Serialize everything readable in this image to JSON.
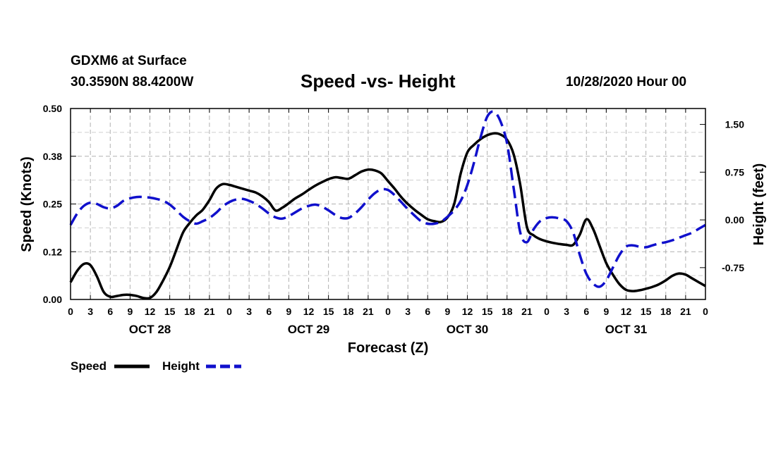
{
  "header": {
    "station": "GDXM6 at Surface",
    "coords": "30.3590N 88.4200W",
    "title": "Speed -vs- Height",
    "datetime": "10/28/2020 Hour 00"
  },
  "colors": {
    "speed": "#000000",
    "height": "#1010cc",
    "grid": "#b0b0b0"
  },
  "legend": {
    "speed_label": "Speed",
    "height_label": "Height"
  },
  "chart_data": {
    "type": "line",
    "title": "Speed -vs- Height",
    "xlabel": "Forecast (Z)",
    "ylabel": "Speed (Knots)",
    "y2label": "Height (feet)",
    "ylim": [
      0,
      0.5
    ],
    "y2lim": [
      -1.25,
      1.75
    ],
    "x_range_hours": [
      0,
      96
    ],
    "yticks": [
      "0.00",
      "0.12",
      "0.25",
      "0.38",
      "0.50"
    ],
    "y2ticks": [
      "1.50",
      "0.75",
      "0.00",
      "-0.75"
    ],
    "xtick_labels": [
      "0",
      "3",
      "6",
      "9",
      "12",
      "15",
      "18",
      "21",
      "0",
      "3",
      "6",
      "9",
      "12",
      "15",
      "18",
      "21",
      "0",
      "3",
      "6",
      "9",
      "12",
      "15",
      "18",
      "21",
      "0",
      "3",
      "6",
      "9",
      "12",
      "15",
      "18",
      "21",
      "0"
    ],
    "day_labels": [
      "OCT 28",
      "OCT 29",
      "OCT 30",
      "OCT 31"
    ],
    "grid": true,
    "series": [
      {
        "name": "Speed",
        "axis": "left",
        "style": "solid",
        "x": [
          0,
          1,
          2,
          3,
          4,
          5,
          6,
          7,
          8,
          9,
          10,
          11,
          12,
          13,
          14,
          15,
          16,
          17,
          18,
          19,
          20,
          21,
          22,
          23,
          24,
          25,
          26,
          27,
          28,
          29,
          30,
          31,
          32,
          33,
          34,
          35,
          36,
          37,
          38,
          39,
          40,
          41,
          42,
          43,
          44,
          45,
          46,
          47,
          48,
          49,
          50,
          51,
          52,
          53,
          54,
          55,
          56,
          57,
          58,
          59,
          60,
          61,
          62,
          63,
          64,
          65,
          66,
          67,
          68,
          69,
          70,
          71,
          72,
          73,
          74,
          75,
          76,
          77,
          78,
          79,
          80,
          81,
          82,
          83,
          84,
          85,
          86,
          87,
          88,
          89,
          90,
          91,
          92,
          93,
          94,
          95,
          96
        ],
        "values": [
          0.045,
          0.075,
          0.093,
          0.09,
          0.06,
          0.02,
          0.007,
          0.009,
          0.012,
          0.012,
          0.009,
          0.004,
          0.004,
          0.02,
          0.05,
          0.085,
          0.13,
          0.175,
          0.2,
          0.22,
          0.235,
          0.26,
          0.29,
          0.302,
          0.3,
          0.295,
          0.29,
          0.285,
          0.28,
          0.27,
          0.255,
          0.233,
          0.24,
          0.252,
          0.265,
          0.275,
          0.287,
          0.298,
          0.307,
          0.315,
          0.32,
          0.318,
          0.316,
          0.325,
          0.335,
          0.34,
          0.338,
          0.33,
          0.31,
          0.29,
          0.268,
          0.25,
          0.235,
          0.222,
          0.21,
          0.205,
          0.203,
          0.215,
          0.25,
          0.33,
          0.385,
          0.405,
          0.42,
          0.43,
          0.435,
          0.432,
          0.418,
          0.38,
          0.3,
          0.19,
          0.168,
          0.158,
          0.152,
          0.148,
          0.145,
          0.143,
          0.143,
          0.17,
          0.21,
          0.185,
          0.14,
          0.095,
          0.065,
          0.04,
          0.025,
          0.022,
          0.024,
          0.028,
          0.033,
          0.04,
          0.05,
          0.062,
          0.068,
          0.065,
          0.055,
          0.045,
          0.035
        ]
      },
      {
        "name": "Height",
        "axis": "right",
        "style": "dashed",
        "x": [
          0,
          1,
          2,
          3,
          4,
          5,
          6,
          7,
          8,
          9,
          10,
          11,
          12,
          13,
          14,
          15,
          16,
          17,
          18,
          19,
          20,
          21,
          22,
          23,
          24,
          25,
          26,
          27,
          28,
          29,
          30,
          31,
          32,
          33,
          34,
          35,
          36,
          37,
          38,
          39,
          40,
          41,
          42,
          43,
          44,
          45,
          46,
          47,
          48,
          49,
          50,
          51,
          52,
          53,
          54,
          55,
          56,
          57,
          58,
          59,
          60,
          61,
          62,
          63,
          64,
          65,
          66,
          67,
          68,
          69,
          70,
          71,
          72,
          73,
          74,
          75,
          76,
          77,
          78,
          79,
          80,
          81,
          82,
          83,
          84,
          85,
          86,
          87,
          88,
          89,
          90,
          91,
          92,
          93,
          94,
          95,
          96
        ],
        "values": [
          -0.08,
          0.1,
          0.22,
          0.27,
          0.25,
          0.2,
          0.18,
          0.22,
          0.3,
          0.34,
          0.36,
          0.36,
          0.35,
          0.33,
          0.3,
          0.24,
          0.15,
          0.05,
          -0.02,
          -0.06,
          -0.02,
          0.03,
          0.11,
          0.21,
          0.28,
          0.32,
          0.33,
          0.3,
          0.25,
          0.18,
          0.1,
          0.04,
          0.02,
          0.06,
          0.12,
          0.18,
          0.22,
          0.24,
          0.21,
          0.15,
          0.08,
          0.03,
          0.03,
          0.1,
          0.2,
          0.32,
          0.42,
          0.48,
          0.47,
          0.39,
          0.28,
          0.17,
          0.07,
          -0.02,
          -0.06,
          -0.06,
          -0.03,
          0.05,
          0.15,
          0.3,
          0.55,
          0.9,
          1.3,
          1.62,
          1.7,
          1.55,
          1.2,
          0.5,
          -0.2,
          -0.35,
          -0.15,
          -0.02,
          0.03,
          0.04,
          0.02,
          -0.02,
          -0.2,
          -0.55,
          -0.85,
          -1.0,
          -1.05,
          -0.95,
          -0.75,
          -0.55,
          -0.42,
          -0.4,
          -0.42,
          -0.43,
          -0.4,
          -0.37,
          -0.35,
          -0.32,
          -0.28,
          -0.24,
          -0.2,
          -0.14,
          -0.08
        ]
      }
    ]
  }
}
